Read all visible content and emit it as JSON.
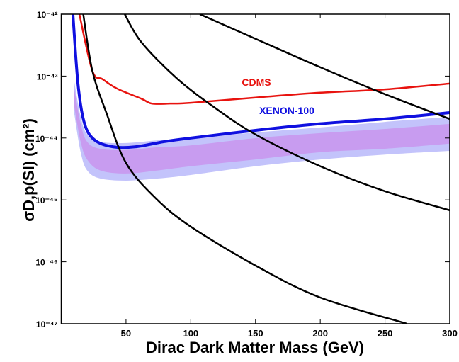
{
  "chart_data": {
    "type": "line",
    "xlabel": "Dirac Dark Matter Mass   (GeV)",
    "ylabel": "σD,p(SI)   (cm²)",
    "log_y": true,
    "xlim": [
      0,
      300
    ],
    "xticks": [
      50,
      100,
      150,
      200,
      250,
      300
    ],
    "ylim": [
      1e-47,
      1e-42
    ],
    "yticks": [
      {
        "value": 1e-47,
        "label": "10⁻⁴⁷"
      },
      {
        "value": 1e-46,
        "label": "10⁻⁴⁶"
      },
      {
        "value": 1e-45,
        "label": "10⁻⁴⁵"
      },
      {
        "value": 1e-44,
        "label": "10⁻⁴⁴"
      },
      {
        "value": 1e-43,
        "label": "10⁻⁴³"
      },
      {
        "value": 1e-42,
        "label": "10⁻⁴²"
      }
    ],
    "bands": [
      {
        "color": "#c3c3fb",
        "x": [
          10,
          15,
          20,
          30,
          50,
          75,
          100,
          150,
          200,
          250,
          300
        ],
        "upper": [
          8.2e-44,
          2.19e-44,
          1.14e-44,
          8.7e-45,
          8.3e-45,
          9.2e-45,
          9.95e-45,
          1.23e-44,
          1.48e-44,
          1.82e-44,
          2.19e-44
        ],
        "lower": [
          2.5e-44,
          5.9e-45,
          3e-45,
          2.22e-45,
          2.05e-45,
          2.22e-45,
          2.53e-45,
          3.5e-45,
          4.5e-45,
          5.4e-45,
          6.2e-45
        ]
      },
      {
        "color": "#c89cf0",
        "x": [
          10,
          15,
          20,
          30,
          50,
          75,
          100,
          150,
          200,
          250,
          300
        ],
        "upper": [
          6.3e-44,
          1.69e-44,
          8.7e-45,
          6.7e-45,
          6.4e-45,
          7.1e-45,
          7.6e-45,
          9.95e-45,
          1.2e-44,
          1.4e-44,
          1.69e-44
        ],
        "lower": [
          3.26e-44,
          8.7e-45,
          4.5e-45,
          3e-45,
          2.67e-45,
          3e-45,
          3.5e-45,
          4.5e-45,
          5.9e-45,
          6.7e-45,
          8.1e-45
        ]
      }
    ],
    "series": [
      {
        "name": "CDMS",
        "color": "#e8130f",
        "x": [
          14,
          24,
          32,
          43,
          62,
          70,
          84,
          100,
          150,
          200,
          250,
          300
        ],
        "values": [
          1e-42,
          1.22e-43,
          8.9e-44,
          6.3e-44,
          4.3e-44,
          3.6e-44,
          3.6e-44,
          3.7e-44,
          4.5e-44,
          5.4e-44,
          6.1e-44,
          7.6e-44
        ]
      },
      {
        "name": "XENON-100",
        "color": "#1010e0",
        "x": [
          9,
          13,
          18,
          26,
          40,
          57,
          79,
          100,
          150,
          200,
          250,
          300
        ],
        "values": [
          1e-42,
          7.2e-44,
          1.7e-44,
          9.2e-45,
          7.2e-45,
          7.2e-45,
          8.7e-45,
          1e-44,
          1.33e-44,
          1.7e-44,
          2.03e-44,
          2.57e-44
        ]
      },
      {
        "color": "#000000",
        "x": [
          17,
          24,
          35,
          50,
          73,
          100,
          150,
          200,
          267
        ],
        "values": [
          1e-42,
          1.22e-43,
          2.5e-44,
          3.95e-45,
          1.06e-45,
          3.7e-46,
          8.7e-47,
          2.65e-47,
          1e-47
        ]
      },
      {
        "color": "#000000",
        "x": [
          49,
          62,
          89,
          117,
          150,
          200,
          250,
          300
        ],
        "values": [
          1e-42,
          3.5e-43,
          9.3e-44,
          3.26e-44,
          1.14e-44,
          3.5e-45,
          1.38e-45,
          6.8e-46
        ]
      },
      {
        "color": "#000000",
        "x": [
          107,
          150,
          200,
          250,
          300
        ],
        "values": [
          1e-42,
          4e-43,
          1.39e-43,
          5.1e-44,
          2.03e-44
        ]
      }
    ]
  }
}
